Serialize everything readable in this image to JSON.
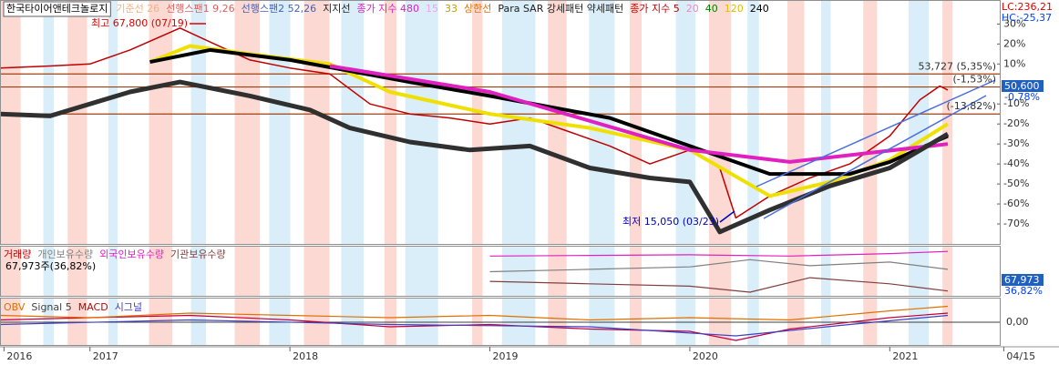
{
  "chart_data": [
    {
      "type": "line",
      "title": "한국타이어앤테크놀로지",
      "legend_items": [
        {
          "label": "기준선 26",
          "color": "#f4b183"
        },
        {
          "label": "선행스팬1 9,26",
          "color": "#e06060"
        },
        {
          "label": "선행스팬2 52,26",
          "color": "#4060c0"
        },
        {
          "label": "지지선",
          "color": "#202020"
        },
        {
          "label": "종가 지수 480",
          "color": "#e020c0"
        },
        {
          "label": "15",
          "color": "#f0a0f0"
        },
        {
          "label": "33",
          "color": "#c0a000"
        },
        {
          "label": "상한선",
          "color": "#e07000"
        },
        {
          "label": "Para SAR 강세패턴  약세패턴",
          "color": "#202020"
        },
        {
          "label": "종가 지수 5",
          "color": "#c00000"
        },
        {
          "label": "20",
          "color": "#ff80c0"
        },
        {
          "label": "40",
          "color": "#008000"
        },
        {
          "label": "120",
          "color": "#e0c000"
        },
        {
          "label": "240",
          "color": "#000000"
        }
      ],
      "lc_label": "LC:236,21",
      "hc_label": "HC:-25,37",
      "last_price_label": "50,600",
      "last_change_label": "-0,78%",
      "annotations": [
        {
          "text": "최고 67,800 (07/19)",
          "color": "#e00000"
        },
        {
          "text": "최저 15,050 (03/23)",
          "color": "#0000c0"
        }
      ],
      "levels": [
        {
          "value": 5,
          "label": "53,727 (5,35%)"
        },
        {
          "value": -1.5,
          "label": "(-1,53%)"
        },
        {
          "value": -15,
          "label": "(-13,82%)"
        }
      ],
      "xlim": [
        2016.55,
        2021.55
      ],
      "xticks": [
        {
          "value": 2016.57,
          "label": "2016"
        },
        2017,
        2018,
        2019,
        2020,
        2021,
        {
          "value": 2021.57,
          "label": "04/15"
        }
      ],
      "ylim": [
        -80,
        42
      ],
      "yticks": [
        {
          "value": 30,
          "label": "30%"
        },
        {
          "value": 20,
          "label": "20%"
        },
        {
          "value": 10,
          "label": "10%"
        },
        {
          "value": -10,
          "label": "-10%"
        },
        {
          "value": -20,
          "label": "-20%"
        },
        {
          "value": -30,
          "label": "-30%"
        },
        {
          "value": -40,
          "label": "-40%"
        },
        {
          "value": -50,
          "label": "-50%"
        },
        {
          "value": -60,
          "label": "-60%"
        },
        {
          "value": -70,
          "label": "-70%"
        }
      ],
      "series": [
        {
          "name": "종가",
          "color": "#c00000",
          "width": 1.5,
          "x": [
            2016.55,
            2016.8,
            2017.0,
            2017.2,
            2017.45,
            2017.6,
            2017.8,
            2018.0,
            2018.2,
            2018.4,
            2018.6,
            2018.8,
            2019.0,
            2019.2,
            2019.4,
            2019.6,
            2019.8,
            2020.0,
            2020.15,
            2020.23,
            2020.4,
            2020.6,
            2020.8,
            2021.0,
            2021.15,
            2021.25,
            2021.29
          ],
          "values": [
            8,
            9,
            10,
            17,
            28,
            21,
            12,
            8,
            5,
            -10,
            -15,
            -17,
            -20,
            -17,
            -24,
            -31,
            -40,
            -33,
            -42,
            -67,
            -56,
            -47,
            -40,
            -26,
            -8,
            -1,
            -3
          ]
        },
        {
          "name": "120",
          "color": "#f0e000",
          "width": 4,
          "x": [
            2017.3,
            2017.5,
            2017.8,
            2018.2,
            2018.5,
            2019.0,
            2019.5,
            2020.0,
            2020.4,
            2020.7,
            2021.0,
            2021.29
          ],
          "values": [
            11,
            19,
            15,
            10,
            -4,
            -15,
            -22,
            -33,
            -56,
            -49,
            -38,
            -20
          ]
        },
        {
          "name": "240",
          "color": "#000000",
          "width": 4,
          "x": [
            2017.3,
            2017.6,
            2018.0,
            2018.6,
            2019.0,
            2019.6,
            2020.0,
            2020.4,
            2020.8,
            2021.0,
            2021.29
          ],
          "values": [
            11,
            17,
            12,
            1,
            -6,
            -17,
            -31,
            -45,
            -45,
            -39,
            -26
          ]
        },
        {
          "name": "480",
          "color": "#e020c0",
          "width": 4,
          "x": [
            2018.2,
            2019.0,
            2020.0,
            2020.5,
            2021.29
          ],
          "values": [
            9,
            -4,
            -33,
            -39,
            -30
          ]
        },
        {
          "name": "지지선",
          "color": "#303030",
          "width": 5,
          "x": [
            2016.55,
            2016.8,
            2017.2,
            2017.45,
            2017.8,
            2018.1,
            2018.3,
            2018.6,
            2018.9,
            2019.2,
            2019.5,
            2019.8,
            2020.0,
            2020.15,
            2020.4,
            2020.7,
            2021.0,
            2021.29
          ],
          "values": [
            -15,
            -16,
            -4,
            1,
            -6,
            -13,
            -22,
            -29,
            -33,
            -31,
            -42,
            -47,
            -49,
            -74,
            -63,
            -51,
            -42,
            -25
          ]
        }
      ]
    },
    {
      "type": "line",
      "legend_items": [
        {
          "label": "거래량",
          "color": "#c00000"
        },
        {
          "label": "개인보유수량",
          "color": "#808080"
        },
        {
          "label": "외국인보유수량",
          "color": "#e020c0"
        },
        {
          "label": "기관보유수량",
          "color": "#804040"
        }
      ],
      "info_label": "67,973주(36,82%)",
      "last_labels": [
        "67,973",
        "36,82%"
      ],
      "ylim": [
        0,
        40
      ],
      "series": [
        {
          "name": "외국인보유수량",
          "color": "#e020c0",
          "x": [
            2019.0,
            2019.5,
            2020.0,
            2020.5,
            2021.0,
            2021.29
          ],
          "values": [
            33,
            33.5,
            34,
            33,
            35,
            36.82
          ]
        },
        {
          "name": "개인보유수량",
          "color": "#808080",
          "x": [
            2019.0,
            2019.5,
            2020.0,
            2020.3,
            2020.6,
            2021.0,
            2021.29
          ],
          "values": [
            20,
            22,
            24,
            30,
            25,
            28,
            22
          ]
        },
        {
          "name": "기관보유수량",
          "color": "#804040",
          "x": [
            2019.0,
            2019.5,
            2020.0,
            2020.3,
            2020.6,
            2021.0,
            2021.29
          ],
          "values": [
            12,
            10,
            8,
            3,
            15,
            10,
            4
          ]
        }
      ]
    },
    {
      "type": "line",
      "legend_items": [
        {
          "label": "OBV",
          "color": "#e07000"
        },
        {
          "label": "Signal 5",
          "color": "#404040"
        },
        {
          "label": "MACD",
          "color": "#c00000"
        },
        {
          "label": "시그널",
          "color": "#4040c0"
        }
      ],
      "ylim": [
        -1,
        1
      ],
      "yticks": [
        {
          "value": 0,
          "label": "0,00"
        }
      ],
      "series": [
        {
          "name": "MACD",
          "color": "#c00040",
          "x": [
            2016.55,
            2017.0,
            2017.5,
            2018.0,
            2018.5,
            2019.0,
            2019.5,
            2020.0,
            2020.23,
            2020.5,
            2021.0,
            2021.29
          ],
          "values": [
            0.1,
            0.2,
            0.3,
            0.1,
            -0.2,
            -0.1,
            -0.3,
            -0.4,
            -0.8,
            -0.3,
            0.2,
            0.4
          ]
        },
        {
          "name": "OBV",
          "color": "#e07000",
          "x": [
            2016.55,
            2017.0,
            2017.5,
            2018.0,
            2018.5,
            2019.0,
            2019.5,
            2020.0,
            2020.5,
            2021.0,
            2021.29
          ],
          "values": [
            0.3,
            0.2,
            0.4,
            0.3,
            0.2,
            0.3,
            0.1,
            0.2,
            0.1,
            0.5,
            0.7
          ]
        },
        {
          "name": "시그널",
          "color": "#4040c0",
          "x": [
            2016.55,
            2017.5,
            2018.5,
            2019.5,
            2020.23,
            2020.8,
            2021.29
          ],
          "values": [
            -0.1,
            0.1,
            -0.1,
            -0.2,
            -0.6,
            -0.1,
            0.3
          ]
        }
      ]
    }
  ]
}
